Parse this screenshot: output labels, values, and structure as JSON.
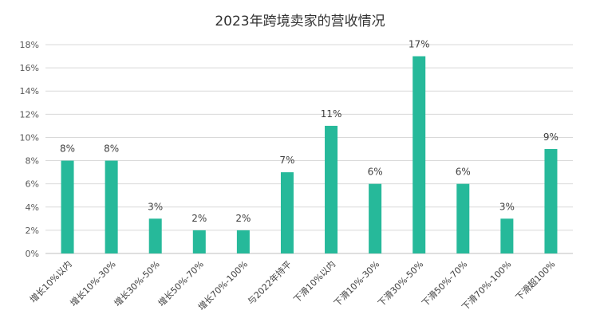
{
  "chart_data": {
    "type": "bar",
    "title": "2023年跨境卖家的营收情况",
    "xlabel": "",
    "ylabel": "",
    "categories": [
      "增长10%以内",
      "增长10%-30%",
      "增长30%-50%",
      "增长50%-70%",
      "增长70%-100%",
      "与2022年持平",
      "下滑10%以内",
      "下滑10%-30%",
      "下滑30%-50%",
      "下滑50%-70%",
      "下滑70%-100%",
      "下滑超100%"
    ],
    "values": [
      8,
      8,
      3,
      2,
      2,
      7,
      11,
      6,
      17,
      6,
      3,
      9
    ],
    "data_labels": [
      "8%",
      "8%",
      "3%",
      "2%",
      "2%",
      "7%",
      "11%",
      "6%",
      "17%",
      "6%",
      "3%",
      "9%"
    ],
    "ylim": [
      0,
      18
    ],
    "yticks": [
      0,
      2,
      4,
      6,
      8,
      10,
      12,
      14,
      16,
      18
    ],
    "ytick_labels": [
      "0%",
      "2%",
      "4%",
      "6%",
      "8%",
      "10%",
      "12%",
      "14%",
      "16%",
      "18%"
    ],
    "grid": true,
    "legend": "none",
    "bar_color": "#26b99a",
    "grid_color": "#d9d9d9"
  }
}
